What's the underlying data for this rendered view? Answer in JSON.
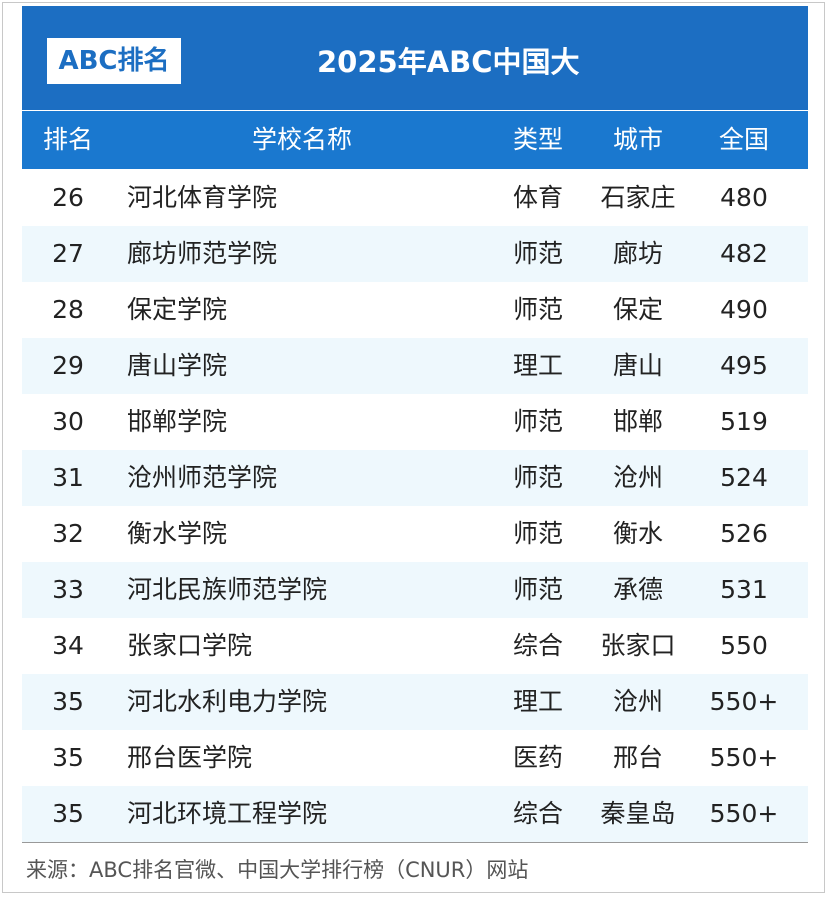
{
  "header": {
    "logo": "ABC排名",
    "title": "2025年ABC中国大"
  },
  "table": {
    "columns": [
      "排名",
      "学校名称",
      "类型",
      "城市",
      "全国"
    ],
    "rows": [
      [
        26,
        "河北体育学院",
        "体育",
        "石家庄",
        480
      ],
      [
        27,
        "廊坊师范学院",
        "师范",
        "廊坊",
        482
      ],
      [
        28,
        "保定学院",
        "师范",
        "保定",
        490
      ],
      [
        29,
        "唐山学院",
        "理工",
        "唐山",
        495
      ],
      [
        30,
        "邯郸学院",
        "师范",
        "邯郸",
        519
      ],
      [
        31,
        "沧州师范学院",
        "师范",
        "沧州",
        524
      ],
      [
        32,
        "衡水学院",
        "师范",
        "衡水",
        526
      ],
      [
        33,
        "河北民族师范学院",
        "师范",
        "承德",
        531
      ],
      [
        34,
        "张家口学院",
        "综合",
        "张家口",
        550
      ],
      [
        35,
        "河北水利电力学院",
        "理工",
        "沧州",
        "550+"
      ],
      [
        35,
        "邢台医学院",
        "医药",
        "邢台",
        "550+"
      ],
      [
        35,
        "河北环境工程学院",
        "综合",
        "秦皇岛",
        "550+"
      ]
    ]
  },
  "footer": {
    "source": "来源：ABC排名官微、中国大学排行榜（CNUR）网站"
  }
}
